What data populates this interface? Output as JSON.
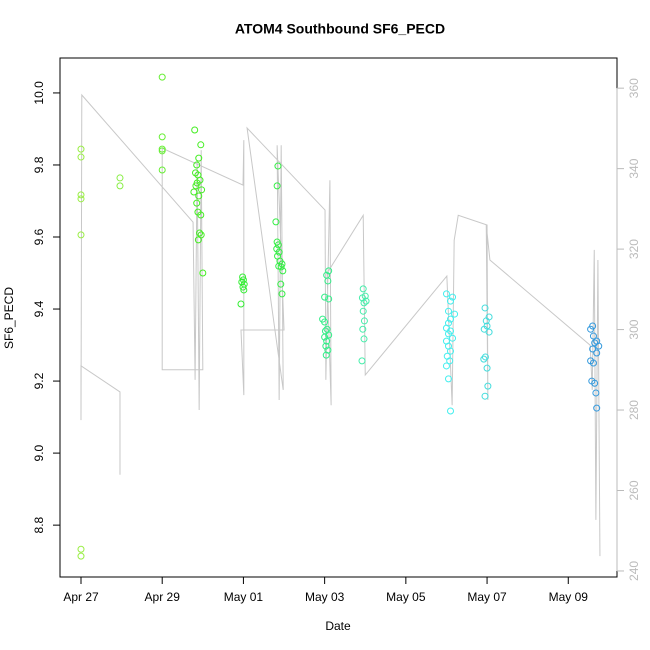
{
  "chart_data": {
    "type": "scatter",
    "title": "ATOM4 Southbound SF6_PECD",
    "x_label": "Date",
    "y_label": "SF6_PECD",
    "xlim": [
      -0.517,
      13.2
    ],
    "xticks": [
      {
        "value": 0,
        "label": "Apr 27"
      },
      {
        "value": 2,
        "label": "Apr 29"
      },
      {
        "value": 4,
        "label": "May 01"
      },
      {
        "value": 6,
        "label": "May 03"
      },
      {
        "value": 8,
        "label": "May 05"
      },
      {
        "value": 10,
        "label": "May 07"
      },
      {
        "value": 12,
        "label": "May 09"
      }
    ],
    "ylim": [
      8.656,
      10.097
    ],
    "yticks": [
      8.8,
      {
        "value": 9,
        "label": "9.0"
      },
      9.2,
      9.4,
      9.6,
      9.8,
      {
        "value": 10,
        "label": "10.0"
      }
    ],
    "y2lim": [
      238.5,
      367.5
    ],
    "y2ticks": [
      240,
      260,
      280,
      300,
      320,
      340,
      360
    ],
    "y2_color": "#bbbbbb",
    "series": [
      {
        "color": "#99ee44",
        "x": [
          0,
          0,
          0,
          0,
          0,
          0,
          0
        ],
        "values": [
          9.844,
          9.822,
          9.717,
          9.706,
          9.606,
          8.733,
          8.714
        ]
      },
      {
        "color": "#88ee44",
        "x": [
          0.96,
          0.96
        ],
        "values": [
          9.764,
          9.742
        ]
      },
      {
        "color": "#66ee33",
        "x": [
          2,
          2,
          2,
          2,
          2
        ],
        "values": [
          10.044,
          9.878,
          9.844,
          9.839,
          9.786
        ]
      },
      {
        "color": "#44ee22",
        "x": [
          2.8,
          2.95,
          2.9,
          2.85,
          2.82,
          2.88,
          2.93,
          2.86,
          2.83,
          2.97,
          2.78,
          2.9,
          2.85,
          2.88,
          2.95,
          2.92,
          2.96,
          2.89,
          3.0
        ],
        "values": [
          9.897,
          9.856,
          9.819,
          9.8,
          9.778,
          9.772,
          9.758,
          9.75,
          9.742,
          9.731,
          9.725,
          9.714,
          9.694,
          9.669,
          9.661,
          9.611,
          9.606,
          9.592,
          9.5
        ]
      },
      {
        "color": "#33ee33",
        "x": [
          3.98,
          4.0,
          3.96,
          4.02,
          3.99,
          4.01,
          3.94
        ],
        "values": [
          9.489,
          9.481,
          9.475,
          9.469,
          9.461,
          9.453,
          9.414
        ]
      },
      {
        "color": "#33ee44",
        "x": [
          4.85,
          4.83,
          4.8,
          4.83,
          4.86,
          4.82,
          4.88,
          4.84,
          4.9,
          4.95,
          4.87,
          4.93,
          4.97,
          4.92,
          4.95
        ],
        "values": [
          9.797,
          9.742,
          9.642,
          9.586,
          9.578,
          9.567,
          9.558,
          9.547,
          9.533,
          9.525,
          9.519,
          9.517,
          9.506,
          9.469,
          9.442
        ]
      },
      {
        "color": "#33ee88",
        "x": [
          6.1,
          6.05,
          6.08,
          6.0,
          6.1,
          5.95,
          6.0,
          6.06,
          6.02,
          6.1,
          6.0,
          6.05,
          6.03,
          6.08,
          6.04
        ],
        "values": [
          9.506,
          9.494,
          9.478,
          9.433,
          9.428,
          9.372,
          9.364,
          9.344,
          9.339,
          9.328,
          9.322,
          9.311,
          9.297,
          9.286,
          9.272
        ]
      },
      {
        "color": "#44eeaa",
        "x": [
          6.95,
          7.0,
          6.93,
          7.02,
          6.97,
          6.95,
          6.98,
          6.94,
          6.97,
          6.92
        ],
        "values": [
          9.456,
          9.436,
          9.431,
          9.422,
          9.417,
          9.394,
          9.367,
          9.344,
          9.317,
          9.256
        ]
      },
      {
        "color": "#44eeee",
        "x": [
          9.0,
          9.15,
          9.1,
          9.05,
          9.2,
          9.1,
          9.05,
          9.0,
          9.1,
          9.05,
          9.15,
          9.0,
          9.05,
          9.1,
          9.02,
          9.08,
          9.0,
          9.05,
          9.1
        ],
        "values": [
          9.442,
          9.433,
          9.422,
          9.394,
          9.386,
          9.372,
          9.361,
          9.347,
          9.339,
          9.331,
          9.319,
          9.311,
          9.297,
          9.283,
          9.269,
          9.256,
          9.242,
          9.206,
          9.117
        ]
      },
      {
        "color": "#44dddd",
        "x": [
          9.95,
          10.05,
          9.98,
          10.0,
          9.93,
          10.05,
          9.96,
          9.92,
          10.0,
          10.02,
          9.95
        ],
        "values": [
          9.403,
          9.378,
          9.367,
          9.353,
          9.344,
          9.336,
          9.267,
          9.261,
          9.236,
          9.186,
          9.158
        ]
      },
      {
        "color": "#3399dd",
        "x": [
          12.6,
          12.55,
          12.62,
          12.7,
          12.65,
          12.75,
          12.6,
          12.7,
          12.55,
          12.62,
          12.58,
          12.65,
          12.68,
          12.7
        ],
        "values": [
          9.353,
          9.344,
          9.325,
          9.311,
          9.306,
          9.297,
          9.289,
          9.278,
          9.256,
          9.25,
          9.2,
          9.194,
          9.167,
          9.125
        ]
      }
    ],
    "line": {
      "color": "#c8c8c8",
      "axis": "y2",
      "x": [
        0.96,
        0.96,
        0,
        0,
        0.02,
        2.76,
        2.81,
        2.86,
        2.91,
        2.96,
        3.0,
        2.0,
        2.0,
        3.99,
        4.01,
        4.01,
        3.94,
        5.0,
        4.83,
        4.88,
        4.93,
        4.98,
        4.09,
        6.01,
        6.03,
        6.13,
        6.16,
        6.06,
        6.95,
        7.0,
        9.01,
        9.14,
        9.19,
        9.29,
        10.0,
        10.02,
        9.98,
        10.07,
        12.54,
        12.59,
        12.64,
        12.68,
        12.73,
        12.78
      ],
      "values": [
        263.9,
        284.5,
        291.0,
        277.5,
        358.3,
        326.7,
        287.5,
        342.1,
        280.0,
        344.6,
        290.0,
        290.0,
        345.1,
        335.9,
        347.1,
        283.7,
        299.9,
        299.9,
        345.8,
        282.5,
        345.8,
        285.0,
        350.1,
        329.7,
        287.5,
        337.1,
        281.2,
        314.0,
        328.4,
        288.7,
        313.3,
        281.2,
        322.2,
        328.4,
        326.0,
        282.5,
        326.0,
        317.3,
        296.1,
        285.0,
        319.8,
        252.7,
        317.3,
        243.7
      ]
    }
  }
}
